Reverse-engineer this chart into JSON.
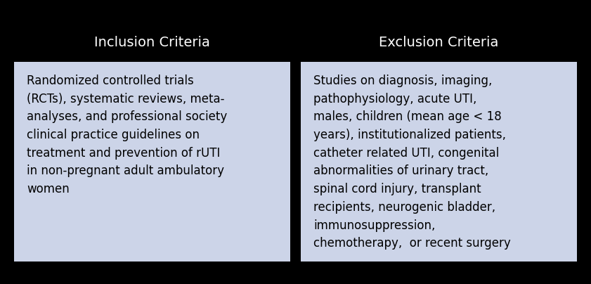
{
  "background_color": "#000000",
  "box_color": "#ccd4e8",
  "header_text_color": "#ffffff",
  "body_text_color": "#000000",
  "left_header": "Inclusion Criteria",
  "right_header": "Exclusion Criteria",
  "left_body": "Randomized controlled trials\n(RCTs), systematic reviews, meta-\nanalyses, and professional society\nclinical practice guidelines on\ntreatment and prevention of rUTI\nin non-pregnant adult ambulatory\nwomen",
  "right_body": "Studies on diagnosis, imaging,\npathophysiology, acute UTI,\nmales, children (mean age < 18\nyears), institutionalized patients,\ncatheter related UTI, congenital\nabnormalities of urinary tract,\nspinal cord injury, transplant\nrecipients, neurogenic bladder,\nimmunosuppression,\nchemotherapy,  or recent surgery",
  "header_fontsize": 14,
  "body_fontsize": 12,
  "fig_width": 8.41,
  "fig_height": 4.04,
  "dpi": 100
}
